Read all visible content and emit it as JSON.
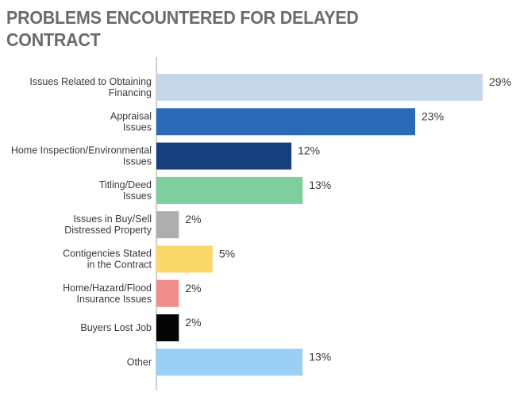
{
  "chart_data": {
    "type": "bar",
    "orientation": "horizontal",
    "title": "PROBLEMS ENCOUNTERED FOR DELAYED CONTRACT",
    "categories": [
      [
        "Issues Related to Obtaining",
        "Financing"
      ],
      [
        "Appraisal",
        "Issues"
      ],
      [
        "Home Inspection/Environmental",
        "Issues"
      ],
      [
        "Titling/Deed",
        "Issues"
      ],
      [
        "Issues in Buy/Sell",
        "Distressed Property"
      ],
      [
        "Contigencies Stated",
        "in the Contract"
      ],
      [
        "Home/Hazard/Flood",
        "Insurance Issues"
      ],
      [
        "Buyers Lost Job"
      ],
      [
        "Other"
      ]
    ],
    "values": [
      29,
      23,
      12,
      13,
      2,
      5,
      2,
      2,
      13
    ],
    "value_labels": [
      "29%",
      "23%",
      "12%",
      "13%",
      "2%",
      "5%",
      "2%",
      "2%",
      "13%"
    ],
    "colors": [
      "#c5d7e8",
      "#2a6ab6",
      "#173f7e",
      "#7ecf9d",
      "#aeaeae",
      "#fad86a",
      "#ef8e8b",
      "#050505",
      "#99d0f3"
    ],
    "xlim": [
      0,
      29
    ],
    "grid": false,
    "legend": "none"
  }
}
